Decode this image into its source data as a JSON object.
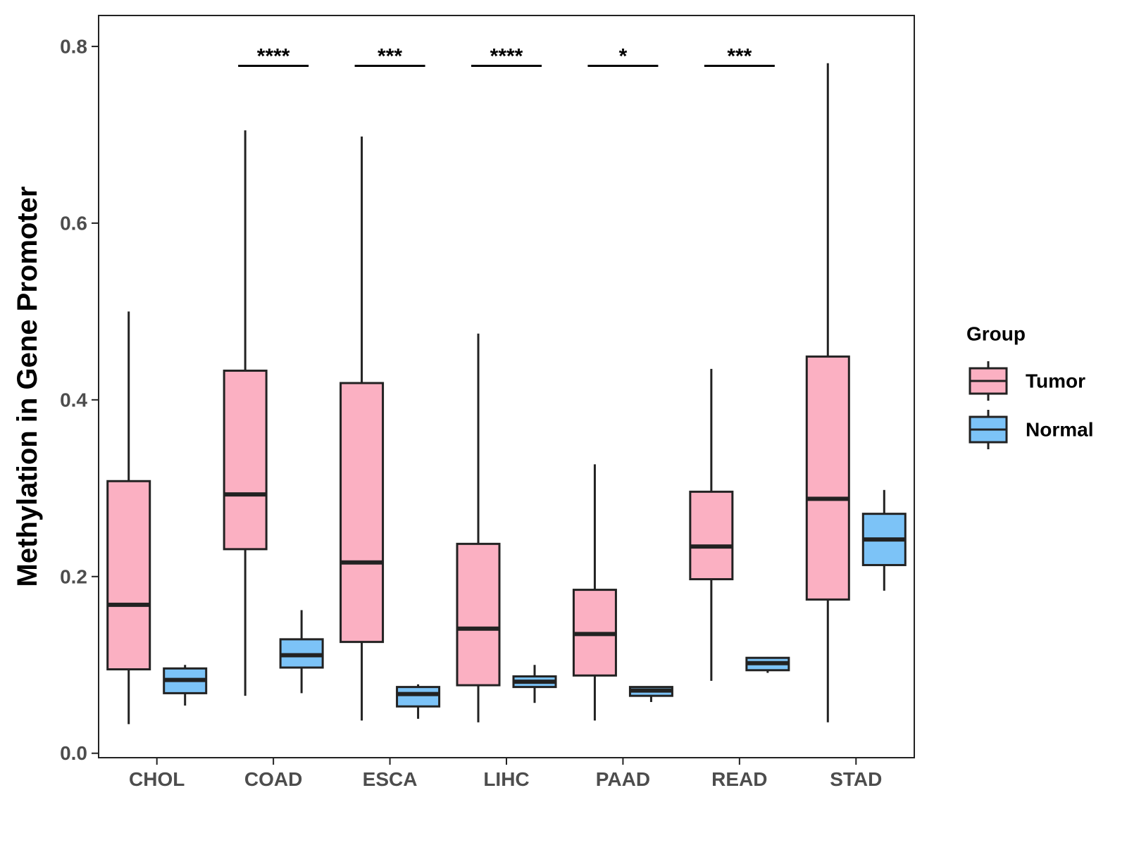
{
  "chart_data": {
    "type": "boxplot",
    "title": "",
    "xlabel": "",
    "ylabel": "Methylation in Gene Promoter",
    "ylim": [
      -0.005,
      0.835
    ],
    "y_ticks": [
      {
        "value": 0.0,
        "label": "0.0"
      },
      {
        "value": 0.2,
        "label": "0.2"
      },
      {
        "value": 0.4,
        "label": "0.4"
      },
      {
        "value": 0.6,
        "label": "0.6"
      },
      {
        "value": 0.8,
        "label": "0.8"
      }
    ],
    "categories": [
      "CHOL",
      "COAD",
      "ESCA",
      "LIHC",
      "PAAD",
      "READ",
      "STAD"
    ],
    "legend": {
      "title": "Group",
      "position": "right",
      "items": [
        {
          "name": "Tumor",
          "color": "#fbb0c2"
        },
        {
          "name": "Normal",
          "color": "#7cc3f7"
        }
      ]
    },
    "series": [
      {
        "name": "Tumor",
        "color": "#fbb0c2",
        "boxes": [
          {
            "min": 0.033,
            "q1": 0.095,
            "median": 0.168,
            "q3": 0.308,
            "max": 0.5
          },
          {
            "min": 0.065,
            "q1": 0.231,
            "median": 0.293,
            "q3": 0.433,
            "max": 0.705
          },
          {
            "min": 0.037,
            "q1": 0.126,
            "median": 0.216,
            "q3": 0.419,
            "max": 0.698
          },
          {
            "min": 0.035,
            "q1": 0.077,
            "median": 0.141,
            "q3": 0.237,
            "max": 0.475
          },
          {
            "min": 0.037,
            "q1": 0.088,
            "median": 0.135,
            "q3": 0.185,
            "max": 0.327
          },
          {
            "min": 0.082,
            "q1": 0.197,
            "median": 0.234,
            "q3": 0.296,
            "max": 0.435
          },
          {
            "min": 0.035,
            "q1": 0.174,
            "median": 0.288,
            "q3": 0.449,
            "max": 0.781
          }
        ]
      },
      {
        "name": "Normal",
        "color": "#7cc3f7",
        "boxes": [
          {
            "min": 0.054,
            "q1": 0.068,
            "median": 0.083,
            "q3": 0.096,
            "max": 0.1
          },
          {
            "min": 0.068,
            "q1": 0.097,
            "median": 0.111,
            "q3": 0.129,
            "max": 0.162
          },
          {
            "min": 0.039,
            "q1": 0.053,
            "median": 0.067,
            "q3": 0.075,
            "max": 0.078
          },
          {
            "min": 0.057,
            "q1": 0.075,
            "median": 0.081,
            "q3": 0.087,
            "max": 0.1
          },
          {
            "min": 0.058,
            "q1": 0.065,
            "median": 0.071,
            "q3": 0.075,
            "max": 0.075
          },
          {
            "min": 0.091,
            "q1": 0.094,
            "median": 0.102,
            "q3": 0.108,
            "max": 0.109
          },
          {
            "min": 0.184,
            "q1": 0.213,
            "median": 0.242,
            "q3": 0.271,
            "max": 0.298
          }
        ]
      }
    ],
    "significance": [
      {
        "category": "COAD",
        "label": "****",
        "y": 0.778
      },
      {
        "category": "ESCA",
        "label": "***",
        "y": 0.778
      },
      {
        "category": "LIHC",
        "label": "****",
        "y": 0.778
      },
      {
        "category": "PAAD",
        "label": "*",
        "y": 0.778
      },
      {
        "category": "READ",
        "label": "***",
        "y": 0.778
      }
    ]
  }
}
